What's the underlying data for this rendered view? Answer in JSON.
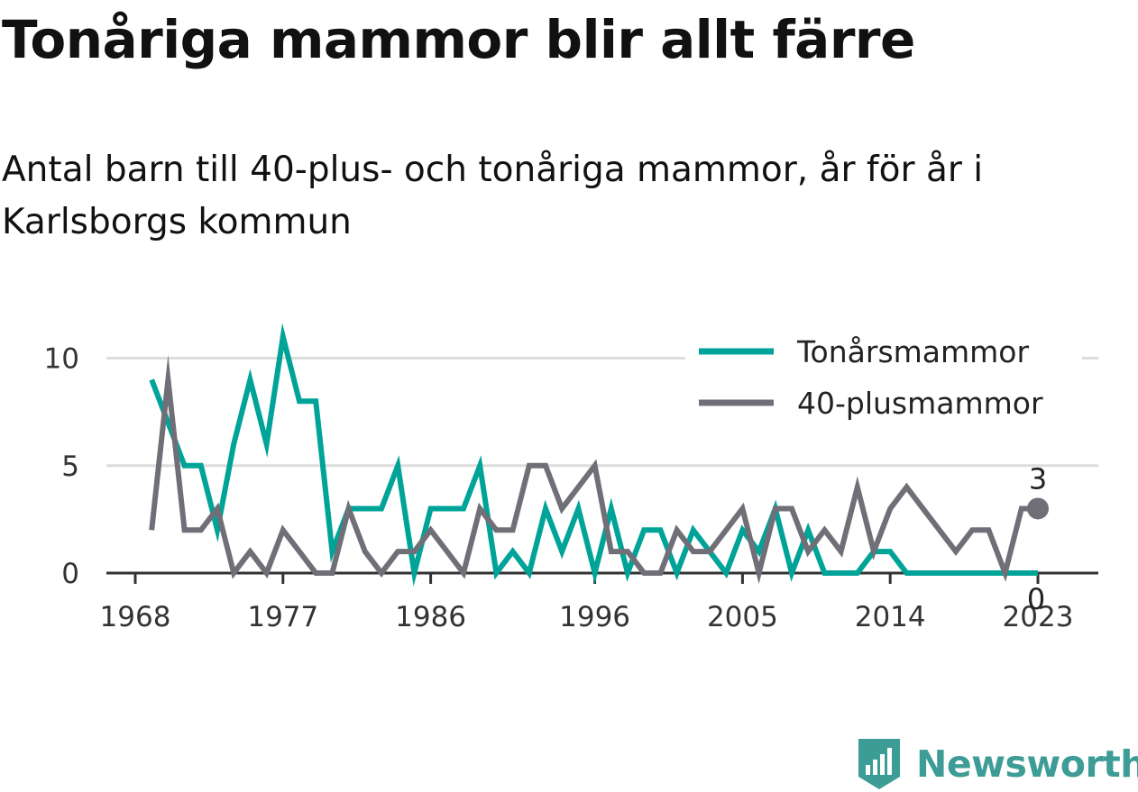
{
  "title": "Tonåriga mammor blir allt färre",
  "subtitle": "Antal barn till 40-plus- och tonåriga mammor, år för år i Karlsborgs kommun",
  "brand": "Newsworthy",
  "colors": {
    "teal": "#00a398",
    "gray": "#706f77",
    "grid": "#dddddd",
    "axis": "#333333"
  },
  "chart_data": {
    "type": "line",
    "x": [
      1969,
      1970,
      1971,
      1972,
      1973,
      1974,
      1975,
      1976,
      1977,
      1978,
      1979,
      1980,
      1981,
      1982,
      1983,
      1984,
      1985,
      1986,
      1987,
      1988,
      1989,
      1990,
      1991,
      1992,
      1993,
      1994,
      1995,
      1996,
      1997,
      1998,
      1999,
      2000,
      2001,
      2002,
      2003,
      2004,
      2005,
      2006,
      2007,
      2008,
      2009,
      2010,
      2011,
      2012,
      2013,
      2014,
      2015,
      2016,
      2017,
      2018,
      2019,
      2020,
      2021,
      2022,
      2023
    ],
    "series": [
      {
        "name": "Tonårsmammor",
        "color": "#00a398",
        "values": [
          9,
          7,
          5,
          5,
          2,
          6,
          9,
          6,
          11,
          8,
          8,
          1,
          3,
          3,
          3,
          5,
          0,
          3,
          3,
          3,
          5,
          0,
          1,
          0,
          3,
          1,
          3,
          0,
          3,
          0,
          2,
          2,
          0,
          2,
          1,
          0,
          2,
          1,
          3,
          0,
          2,
          0,
          0,
          0,
          1,
          1,
          0,
          0,
          0,
          0,
          0,
          0,
          0,
          0,
          0
        ]
      },
      {
        "name": "40-plusmammor",
        "color": "#706f77",
        "values": [
          2,
          9,
          2,
          2,
          3,
          0,
          1,
          0,
          2,
          1,
          0,
          0,
          3,
          1,
          0,
          1,
          1,
          2,
          1,
          0,
          3,
          2,
          2,
          5,
          5,
          3,
          4,
          5,
          1,
          1,
          0,
          0,
          2,
          1,
          1,
          2,
          3,
          0,
          3,
          3,
          1,
          2,
          1,
          4,
          1,
          3,
          4,
          3,
          2,
          1,
          2,
          2,
          0,
          3,
          3
        ]
      }
    ],
    "xticks": [
      "1968",
      "1977",
      "1986",
      "1996",
      "2005",
      "2014",
      "2023"
    ],
    "yticks": [
      "0",
      "5",
      "10"
    ],
    "xlim": [
      1968,
      2024
    ],
    "ylim": [
      0,
      11
    ],
    "end_labels": [
      "0",
      "3"
    ],
    "legend_position": "top-right",
    "grid": "horizontal"
  }
}
